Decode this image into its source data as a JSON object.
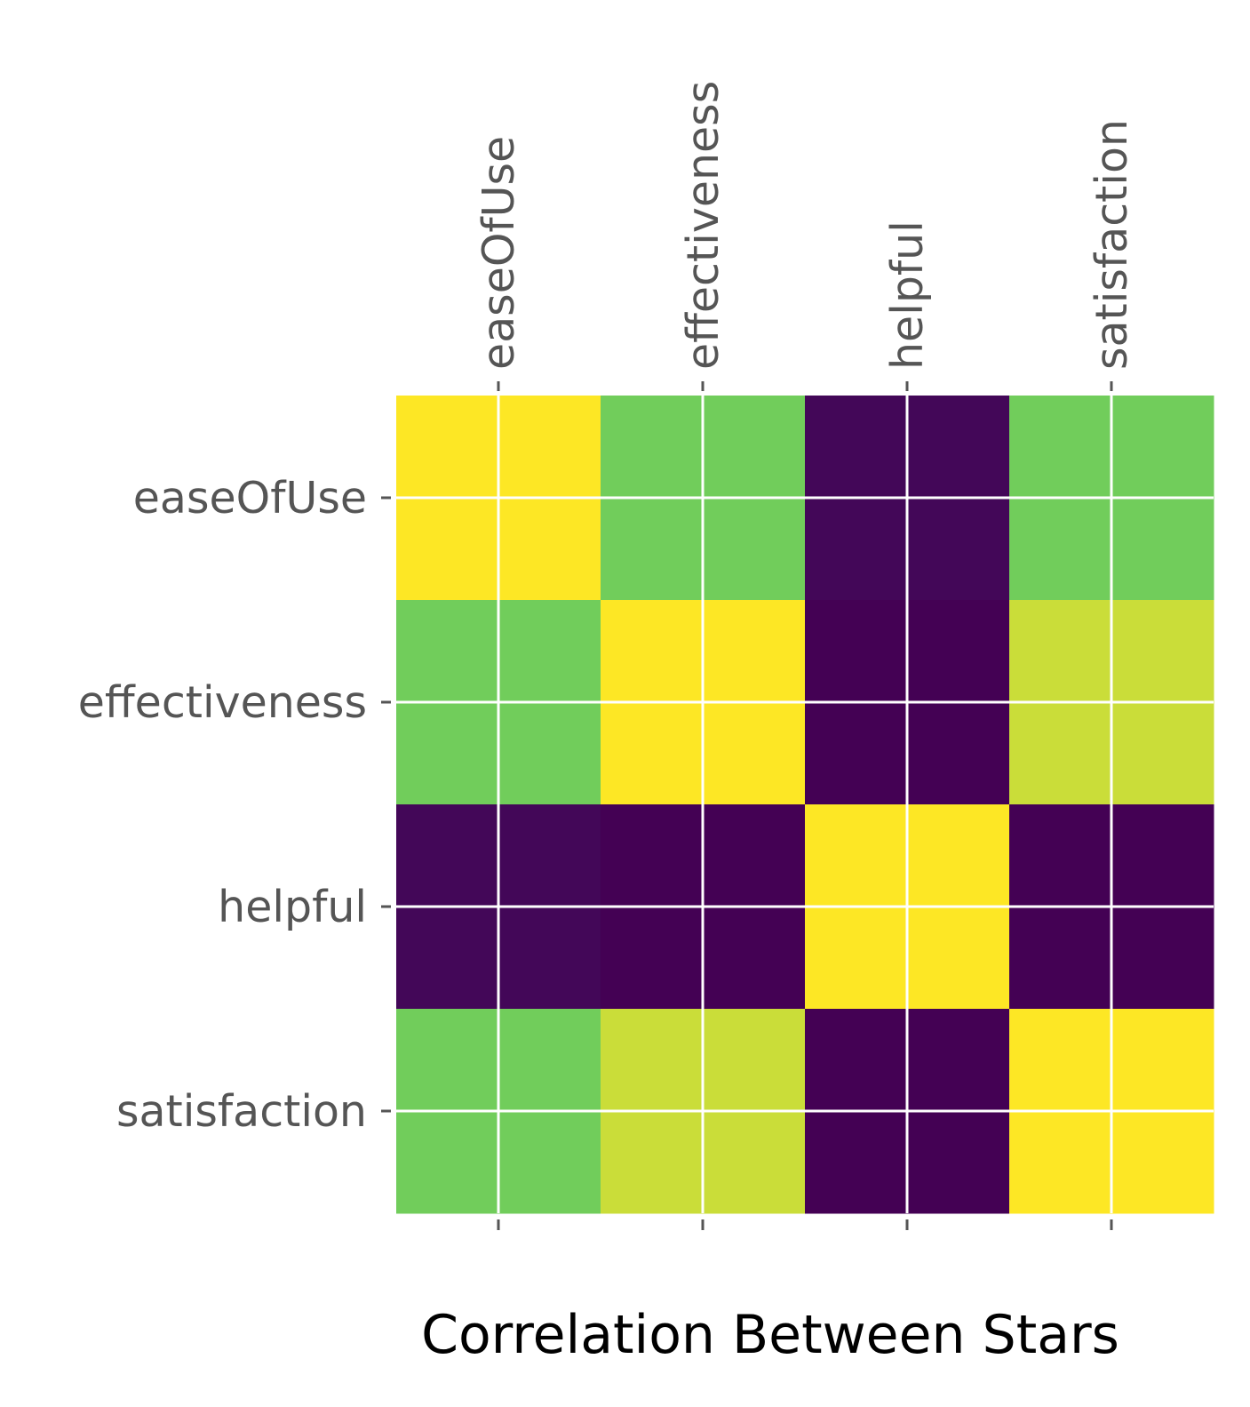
{
  "chart_data": {
    "type": "heatmap",
    "title": "",
    "xlabel": "Correlation Between Stars",
    "ylabel": "",
    "x_categories": [
      "easeOfUse",
      "effectiveness",
      "helpful",
      "satisfaction"
    ],
    "y_categories": [
      "easeOfUse",
      "effectiveness",
      "helpful",
      "satisfaction"
    ],
    "values": [
      [
        1.0,
        0.78,
        0.02,
        0.78
      ],
      [
        0.78,
        1.0,
        0.0,
        0.92
      ],
      [
        0.02,
        0.0,
        1.0,
        0.0
      ],
      [
        0.78,
        0.92,
        0.0,
        1.0
      ]
    ],
    "x_tick_position": "top",
    "colormap": "viridis",
    "grid": true,
    "grid_color": "#ffffff",
    "legend": false
  }
}
